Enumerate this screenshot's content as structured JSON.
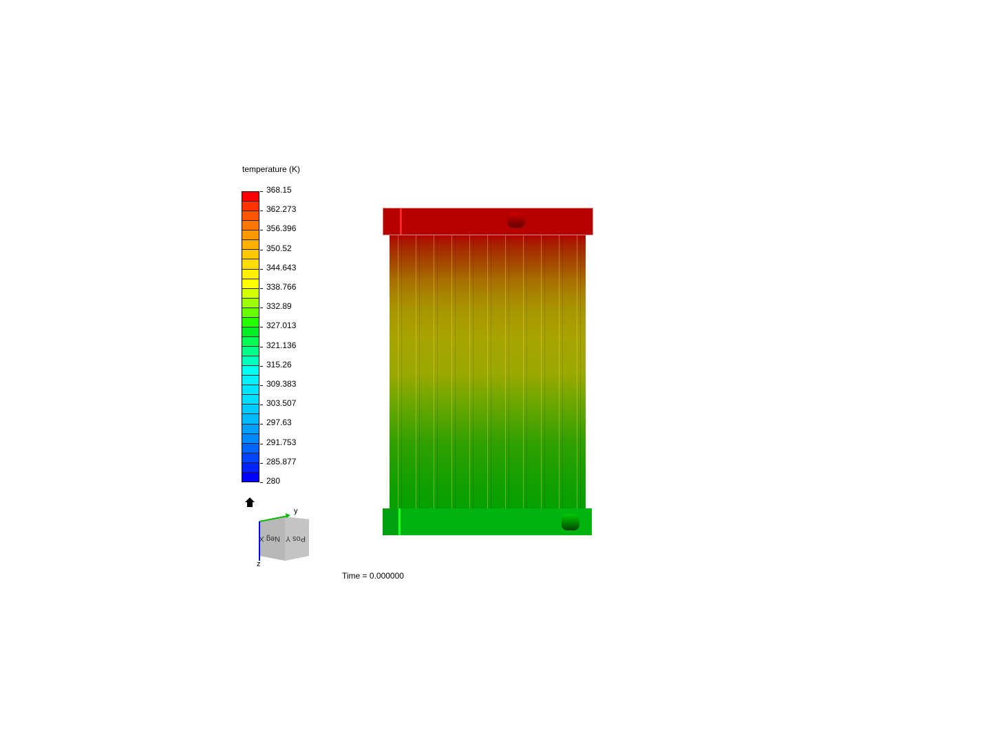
{
  "legend": {
    "title": "temperature (K)",
    "labels": [
      "368.15",
      "362.273",
      "356.396",
      "350.52",
      "344.643",
      "338.766",
      "332.89",
      "327.013",
      "321.136",
      "315.26",
      "309.383",
      "303.507",
      "297.63",
      "291.753",
      "285.877",
      "280"
    ],
    "band_colors": [
      "#ff0000",
      "#ff3300",
      "#ff5500",
      "#ff7700",
      "#ff9900",
      "#ffb000",
      "#ffc800",
      "#ffdd00",
      "#ffee00",
      "#ffff00",
      "#d4ff00",
      "#a0ff00",
      "#66ff00",
      "#22ff00",
      "#00ee22",
      "#00ff55",
      "#00ff88",
      "#00ffbb",
      "#00ffee",
      "#00f0ff",
      "#00e5ff",
      "#00ddff",
      "#00ccff",
      "#00bbff",
      "#00a0ff",
      "#0088ff",
      "#0066ff",
      "#0044ff",
      "#0022ff",
      "#0000ff"
    ]
  },
  "orientation": {
    "axis_y": "y",
    "axis_z": "z",
    "face_left": "Neg X",
    "face_right": "Pos Y"
  },
  "time_label": "Time = 0.000000"
}
